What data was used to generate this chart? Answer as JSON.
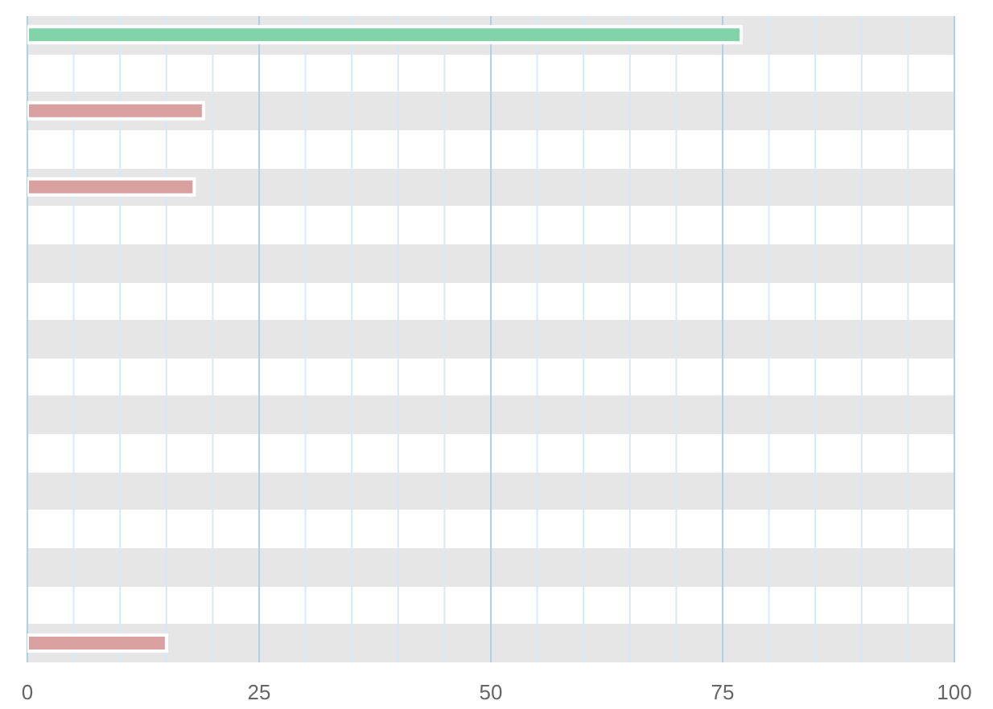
{
  "chart_data": {
    "type": "bar",
    "orientation": "horizontal",
    "categories": [
      null,
      null,
      null,
      null,
      null,
      null,
      null,
      null,
      null,
      null,
      null,
      null,
      null,
      null,
      null,
      null,
      null
    ],
    "values": [
      77,
      null,
      19,
      null,
      18,
      null,
      null,
      null,
      null,
      null,
      null,
      null,
      null,
      null,
      null,
      null,
      15
    ],
    "colors": [
      "#82d4a8",
      null,
      "#d9a0a0",
      null,
      "#d9a0a0",
      null,
      null,
      null,
      null,
      null,
      null,
      null,
      null,
      null,
      null,
      null,
      "#d9a0a0"
    ],
    "xlim": [
      0,
      100
    ],
    "xticks": [
      0,
      {
        "value": 5,
        "label": null
      },
      {
        "value": 10,
        "label": null
      },
      {
        "value": 15,
        "label": null
      },
      {
        "value": 20,
        "label": null
      },
      25,
      {
        "value": 30,
        "label": null
      },
      {
        "value": 35,
        "label": null
      },
      {
        "value": 40,
        "label": null
      },
      {
        "value": 45,
        "label": null
      },
      50,
      {
        "value": 55,
        "label": null
      },
      {
        "value": 60,
        "label": null
      },
      {
        "value": 65,
        "label": null
      },
      {
        "value": 70,
        "label": null
      },
      75,
      {
        "value": 80,
        "label": null
      },
      {
        "value": 85,
        "label": null
      },
      {
        "value": 90,
        "label": null
      },
      {
        "value": 95,
        "label": null
      },
      100
    ],
    "grid": "x"
  }
}
